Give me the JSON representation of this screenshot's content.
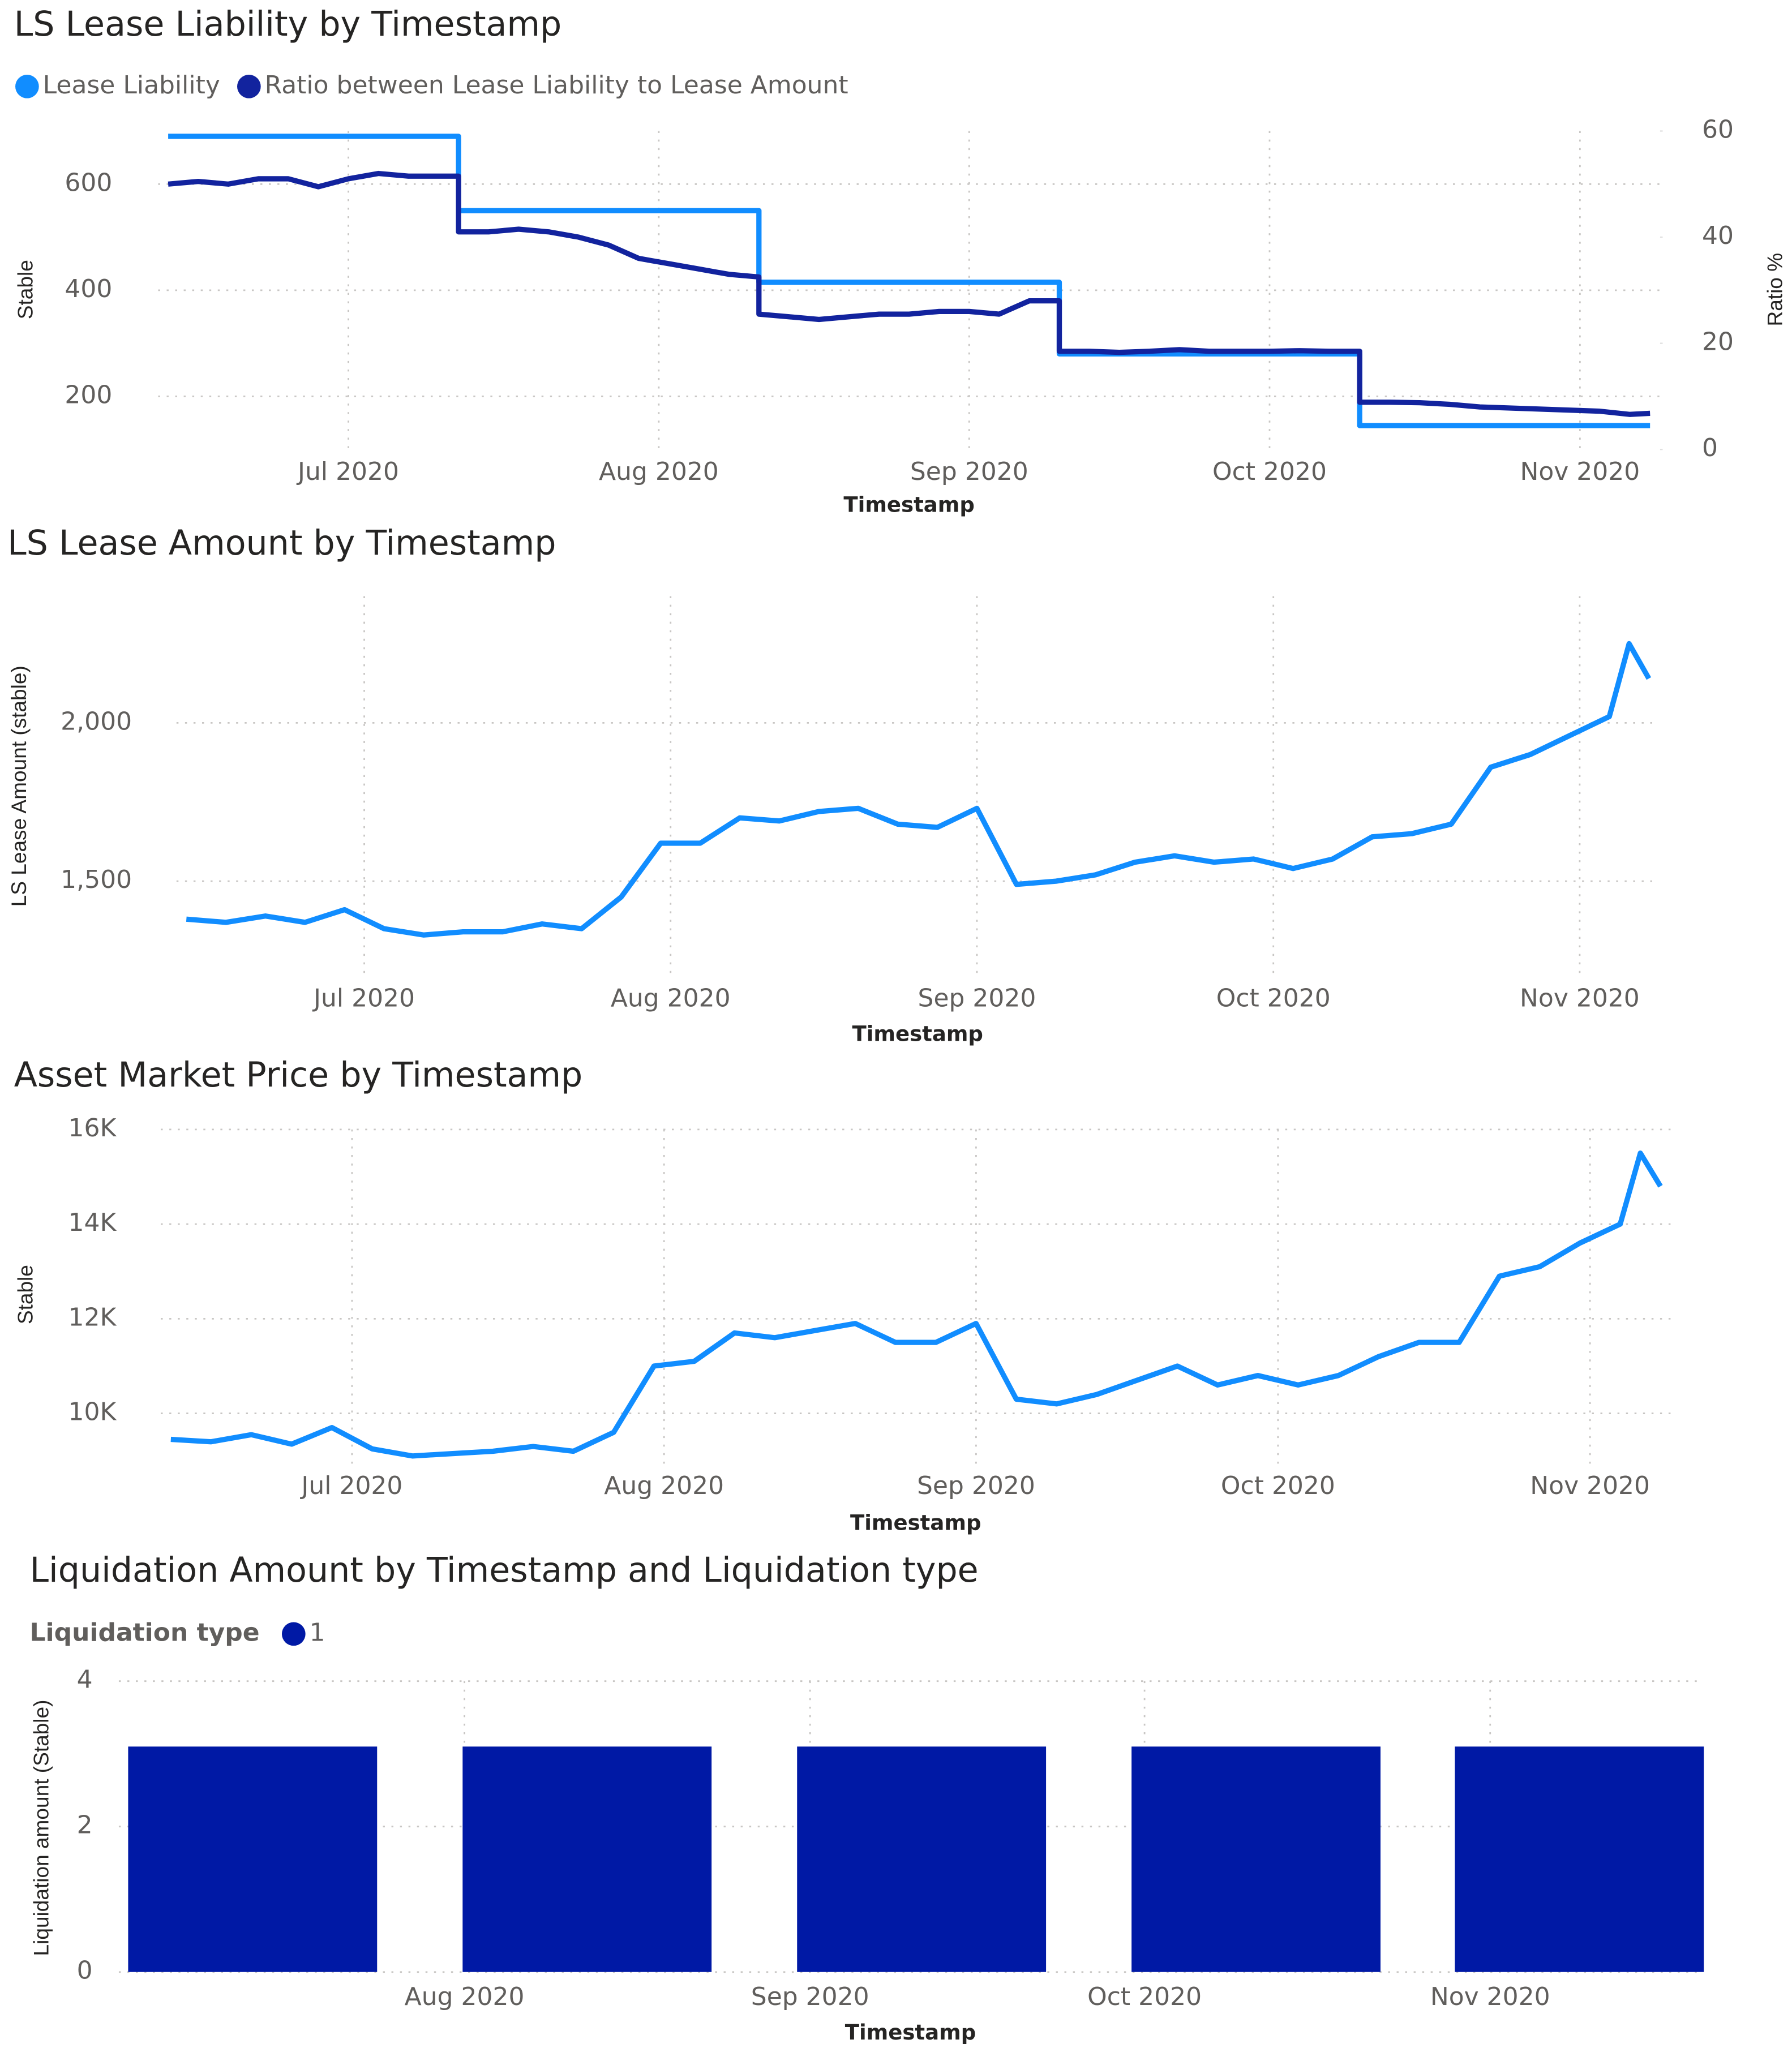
{
  "chart_data": [
    {
      "type": "line",
      "title": "LS Lease Liability by Timestamp",
      "xlabel": "Timestamp",
      "ylabel": "Stable",
      "y2label": "Ratio %",
      "legend": "top-left",
      "grid": true,
      "x": [
        165,
        168,
        171,
        174,
        177,
        180,
        183,
        186,
        189,
        192,
        194,
        194,
        197,
        200,
        203,
        206,
        209,
        212,
        215,
        218,
        221,
        224,
        224,
        227,
        230,
        233,
        236,
        239,
        242,
        245,
        248,
        251,
        254,
        254,
        257,
        260,
        263,
        266,
        269,
        272,
        275,
        278,
        281,
        284,
        284,
        287,
        290,
        293,
        296,
        299,
        302,
        305,
        308,
        311,
        313
      ],
      "xlim": [
        164,
        314
      ],
      "xticks": [
        {
          "value": 183,
          "label": "Jul 2020"
        },
        {
          "value": 214,
          "label": "Aug 2020"
        },
        {
          "value": 245,
          "label": "Sep 2020"
        },
        {
          "value": 275,
          "label": "Oct 2020"
        },
        {
          "value": 306,
          "label": "Nov 2020"
        }
      ],
      "ylim": [
        100,
        700
      ],
      "yticks": [
        200,
        400,
        600
      ],
      "y2lim": [
        0,
        60
      ],
      "y2ticks": [
        0,
        20,
        40,
        60
      ],
      "series": [
        {
          "name": "Lease Liability",
          "color": "#118dff",
          "values": [
            690,
            690,
            690,
            690,
            690,
            690,
            690,
            690,
            690,
            690,
            690,
            550,
            550,
            550,
            550,
            550,
            550,
            550,
            550,
            550,
            550,
            550,
            415,
            415,
            415,
            415,
            415,
            415,
            415,
            415,
            415,
            415,
            415,
            280,
            280,
            280,
            280,
            280,
            280,
            280,
            280,
            280,
            280,
            280,
            145,
            145,
            145,
            145,
            145,
            145,
            145,
            145,
            145,
            145,
            145
          ]
        },
        {
          "name": "Ratio between Lease Liability to Lease Amount",
          "color": "#12239e",
          "axis": "y2",
          "values": [
            50,
            50.5,
            50,
            51,
            51,
            49.5,
            51,
            52,
            51.5,
            51.5,
            51.5,
            41,
            41,
            41.5,
            41,
            40,
            38.5,
            36,
            35,
            34,
            33,
            32.5,
            25.5,
            25,
            24.5,
            25,
            25.5,
            25.5,
            26,
            26,
            25.5,
            28,
            28,
            18.5,
            18.5,
            18.3,
            18.5,
            18.8,
            18.5,
            18.5,
            18.5,
            18.6,
            18.5,
            18.5,
            8.9,
            8.9,
            8.8,
            8.5,
            8,
            7.8,
            7.6,
            7.4,
            7.2,
            6.6,
            6.8
          ]
        }
      ]
    },
    {
      "type": "line",
      "title": "LS Lease Amount by Timestamp",
      "xlabel": "Timestamp",
      "ylabel": "LS Lease Amount (stable)",
      "grid": true,
      "color": "#118dff",
      "x": [
        165,
        169,
        173,
        177,
        181,
        185,
        189,
        193,
        197,
        201,
        205,
        209,
        213,
        217,
        221,
        225,
        229,
        233,
        237,
        241,
        245,
        249,
        253,
        257,
        261,
        265,
        269,
        273,
        277,
        281,
        285,
        289,
        293,
        297,
        301,
        305,
        309,
        311,
        313
      ],
      "values": [
        1380,
        1370,
        1390,
        1370,
        1410,
        1350,
        1330,
        1340,
        1340,
        1365,
        1350,
        1450,
        1620,
        1620,
        1700,
        1690,
        1720,
        1730,
        1680,
        1670,
        1730,
        1490,
        1500,
        1520,
        1560,
        1580,
        1560,
        1570,
        1540,
        1570,
        1640,
        1650,
        1680,
        1860,
        1900,
        1960,
        2020,
        2250,
        2140
      ],
      "xlim": [
        164,
        314
      ],
      "xticks": [
        {
          "value": 183,
          "label": "Jul 2020"
        },
        {
          "value": 214,
          "label": "Aug 2020"
        },
        {
          "value": 245,
          "label": "Sep 2020"
        },
        {
          "value": 275,
          "label": "Oct 2020"
        },
        {
          "value": 306,
          "label": "Nov 2020"
        }
      ],
      "ylim": [
        1200,
        2400
      ],
      "yticks": [
        {
          "value": 1500,
          "label": "1,500"
        },
        {
          "value": 2000,
          "label": "2,000"
        }
      ]
    },
    {
      "type": "line",
      "title": "Asset Market Price by Timestamp",
      "xlabel": "Timestamp",
      "ylabel": "Stable",
      "grid": true,
      "color": "#118dff",
      "x": [
        165,
        169,
        173,
        177,
        181,
        185,
        189,
        193,
        197,
        201,
        205,
        209,
        213,
        217,
        221,
        225,
        229,
        233,
        237,
        241,
        245,
        249,
        253,
        257,
        261,
        265,
        269,
        273,
        277,
        281,
        285,
        289,
        293,
        297,
        301,
        305,
        309,
        311,
        313
      ],
      "values": [
        9450,
        9400,
        9550,
        9350,
        9700,
        9250,
        9100,
        9150,
        9200,
        9300,
        9200,
        9600,
        11000,
        11100,
        11700,
        11600,
        11750,
        11900,
        11500,
        11500,
        11900,
        10300,
        10200,
        10400,
        10700,
        11000,
        10600,
        10800,
        10600,
        10800,
        11200,
        11500,
        11500,
        12900,
        13100,
        13600,
        14000,
        15500,
        14800
      ],
      "xlim": [
        164,
        314
      ],
      "xticks": [
        {
          "value": 183,
          "label": "Jul 2020"
        },
        {
          "value": 214,
          "label": "Aug 2020"
        },
        {
          "value": 245,
          "label": "Sep 2020"
        },
        {
          "value": 275,
          "label": "Oct 2020"
        },
        {
          "value": 306,
          "label": "Nov 2020"
        }
      ],
      "ylim": [
        8800,
        16000
      ],
      "yticks": [
        {
          "value": 10000,
          "label": "10K"
        },
        {
          "value": 12000,
          "label": "12K"
        },
        {
          "value": 14000,
          "label": "14K"
        },
        {
          "value": 16000,
          "label": "16K"
        }
      ]
    },
    {
      "type": "bar",
      "title": "Liquidation Amount by Timestamp and Liquidation type",
      "xlabel": "Timestamp",
      "ylabel": "Liquidation amount (Stable)",
      "legend": "top-left",
      "legend_title": "Liquidation type",
      "grid": true,
      "x": [
        195,
        225,
        255,
        285,
        314
      ],
      "xlim": [
        183,
        325
      ],
      "xticks": [
        {
          "value": 214,
          "label": "Aug 2020"
        },
        {
          "value": 245,
          "label": "Sep 2020"
        },
        {
          "value": 275,
          "label": "Oct 2020"
        },
        {
          "value": 306,
          "label": "Nov 2020"
        }
      ],
      "ylim": [
        0,
        4
      ],
      "yticks": [
        0,
        2,
        4
      ],
      "series": [
        {
          "name": "1",
          "color": "#0019a5",
          "values": [
            3.1,
            3.1,
            3.1,
            3.1,
            3.1
          ]
        }
      ]
    }
  ]
}
